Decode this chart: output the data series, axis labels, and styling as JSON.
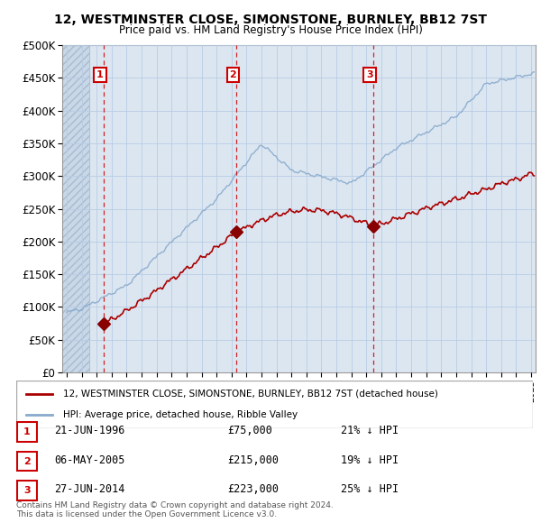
{
  "title": "12, WESTMINSTER CLOSE, SIMONSTONE, BURNLEY, BB12 7ST",
  "subtitle": "Price paid vs. HM Land Registry's House Price Index (HPI)",
  "legend_property": "12, WESTMINSTER CLOSE, SIMONSTONE, BURNLEY, BB12 7ST (detached house)",
  "legend_hpi": "HPI: Average price, detached house, Ribble Valley",
  "copyright": "Contains HM Land Registry data © Crown copyright and database right 2024.\nThis data is licensed under the Open Government Licence v3.0.",
  "sales": [
    {
      "num": 1,
      "date": "21-JUN-1996",
      "price": 75000,
      "pct": "21%",
      "dir": "↓",
      "year": 1996.47
    },
    {
      "num": 2,
      "date": "06-MAY-2005",
      "price": 215000,
      "pct": "19%",
      "dir": "↓",
      "year": 2005.34
    },
    {
      "num": 3,
      "date": "27-JUN-2014",
      "price": 223000,
      "pct": "25%",
      "dir": "↓",
      "year": 2014.48
    }
  ],
  "property_color": "#aa0000",
  "hpi_color": "#88aacc",
  "sale_marker_color": "#880000",
  "vline_color": "#cc0000",
  "grid_color": "#b8cce4",
  "plot_bg_color": "#dce6f1",
  "ylim": [
    0,
    500000
  ],
  "xlim_start": 1993.7,
  "xlim_end": 2025.3
}
